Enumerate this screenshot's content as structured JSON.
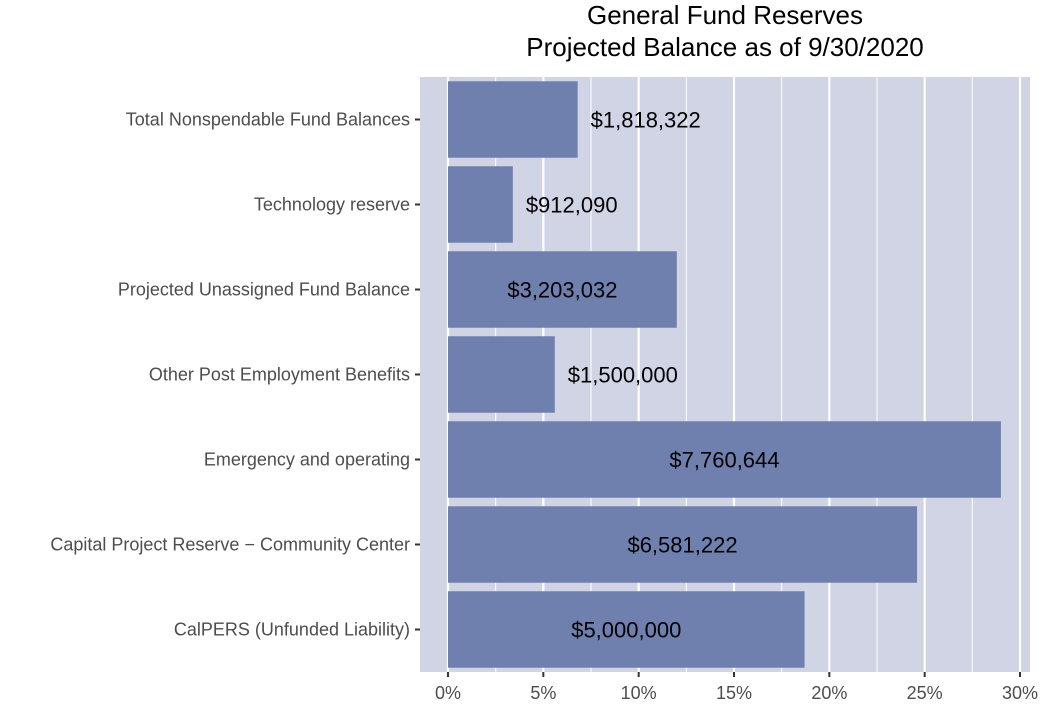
{
  "chart_data": {
    "type": "bar",
    "orientation": "horizontal",
    "title": "General Fund Reserves",
    "subtitle": "Projected Balance as of 9/30/2020",
    "xlabel": "",
    "ylabel": "",
    "xlim": [
      0,
      0.3
    ],
    "x_ticks": [
      {
        "value": 0.0,
        "label": "0%"
      },
      {
        "value": 0.05,
        "label": "5%"
      },
      {
        "value": 0.1,
        "label": "10%"
      },
      {
        "value": 0.15,
        "label": "15%"
      },
      {
        "value": 0.2,
        "label": "20%"
      },
      {
        "value": 0.25,
        "label": "25%"
      },
      {
        "value": 0.3,
        "label": "30%"
      }
    ],
    "categories": [
      "Total Nonspendable Fund Balances",
      "Technology reserve",
      "Projected Unassigned Fund Balance",
      "Other Post Employment Benefits",
      "Emergency and operating",
      "Capital Project Reserve − Community Center",
      "CalPERS (Unfunded Liability)"
    ],
    "values": [
      0.068,
      0.034,
      0.12,
      0.056,
      0.29,
      0.246,
      0.187
    ],
    "data_labels": [
      "$1,818,322",
      "$912,090",
      "$3,203,032",
      "$1,500,000",
      "$7,760,644",
      "$6,581,222",
      "$5,000,000"
    ],
    "label_inside": [
      false,
      false,
      true,
      false,
      true,
      true,
      true
    ],
    "grid": true,
    "legend": "none",
    "colors": {
      "panel": "#d0d4e5",
      "bar": "#6f80af",
      "grid": "#ffffff",
      "text": "#000000",
      "axis_text": "#4d4d4d"
    }
  }
}
